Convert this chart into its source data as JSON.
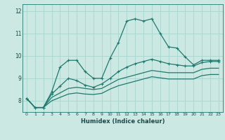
{
  "xlabel": "Humidex (Indice chaleur)",
  "bg_color": "#cbe8e3",
  "grid_color": "#a8d5ce",
  "line_color": "#1e7a6e",
  "x": [
    0,
    1,
    2,
    3,
    4,
    5,
    6,
    7,
    8,
    9,
    10,
    11,
    12,
    13,
    14,
    15,
    16,
    17,
    18,
    19,
    20,
    21,
    22,
    23
  ],
  "line1": [
    8.1,
    7.7,
    7.7,
    8.4,
    9.5,
    9.8,
    9.8,
    9.3,
    9.0,
    9.0,
    9.9,
    10.6,
    11.55,
    11.65,
    11.55,
    11.65,
    11.0,
    10.4,
    10.35,
    9.95,
    9.6,
    9.8,
    9.8,
    9.8
  ],
  "line2": [
    8.1,
    7.7,
    7.7,
    8.3,
    8.65,
    9.0,
    8.9,
    8.7,
    8.6,
    8.75,
    9.0,
    9.3,
    9.5,
    9.65,
    9.75,
    9.85,
    9.75,
    9.65,
    9.6,
    9.55,
    9.55,
    9.7,
    9.75,
    9.75
  ],
  "line3": [
    8.1,
    7.7,
    7.7,
    8.15,
    8.35,
    8.55,
    8.6,
    8.55,
    8.5,
    8.55,
    8.75,
    8.95,
    9.05,
    9.15,
    9.25,
    9.35,
    9.3,
    9.25,
    9.25,
    9.25,
    9.25,
    9.4,
    9.45,
    9.45
  ],
  "line4": [
    8.1,
    7.7,
    7.7,
    8.0,
    8.15,
    8.3,
    8.35,
    8.3,
    8.28,
    8.33,
    8.52,
    8.67,
    8.77,
    8.87,
    8.97,
    9.07,
    9.02,
    8.97,
    8.97,
    8.97,
    8.97,
    9.12,
    9.17,
    9.17
  ],
  "ylim": [
    7.5,
    12.3
  ],
  "yticks": [
    8,
    9,
    10,
    11,
    12
  ],
  "xticks": [
    0,
    1,
    2,
    3,
    4,
    5,
    6,
    7,
    8,
    9,
    10,
    11,
    12,
    13,
    14,
    15,
    16,
    17,
    18,
    19,
    20,
    21,
    22,
    23
  ]
}
